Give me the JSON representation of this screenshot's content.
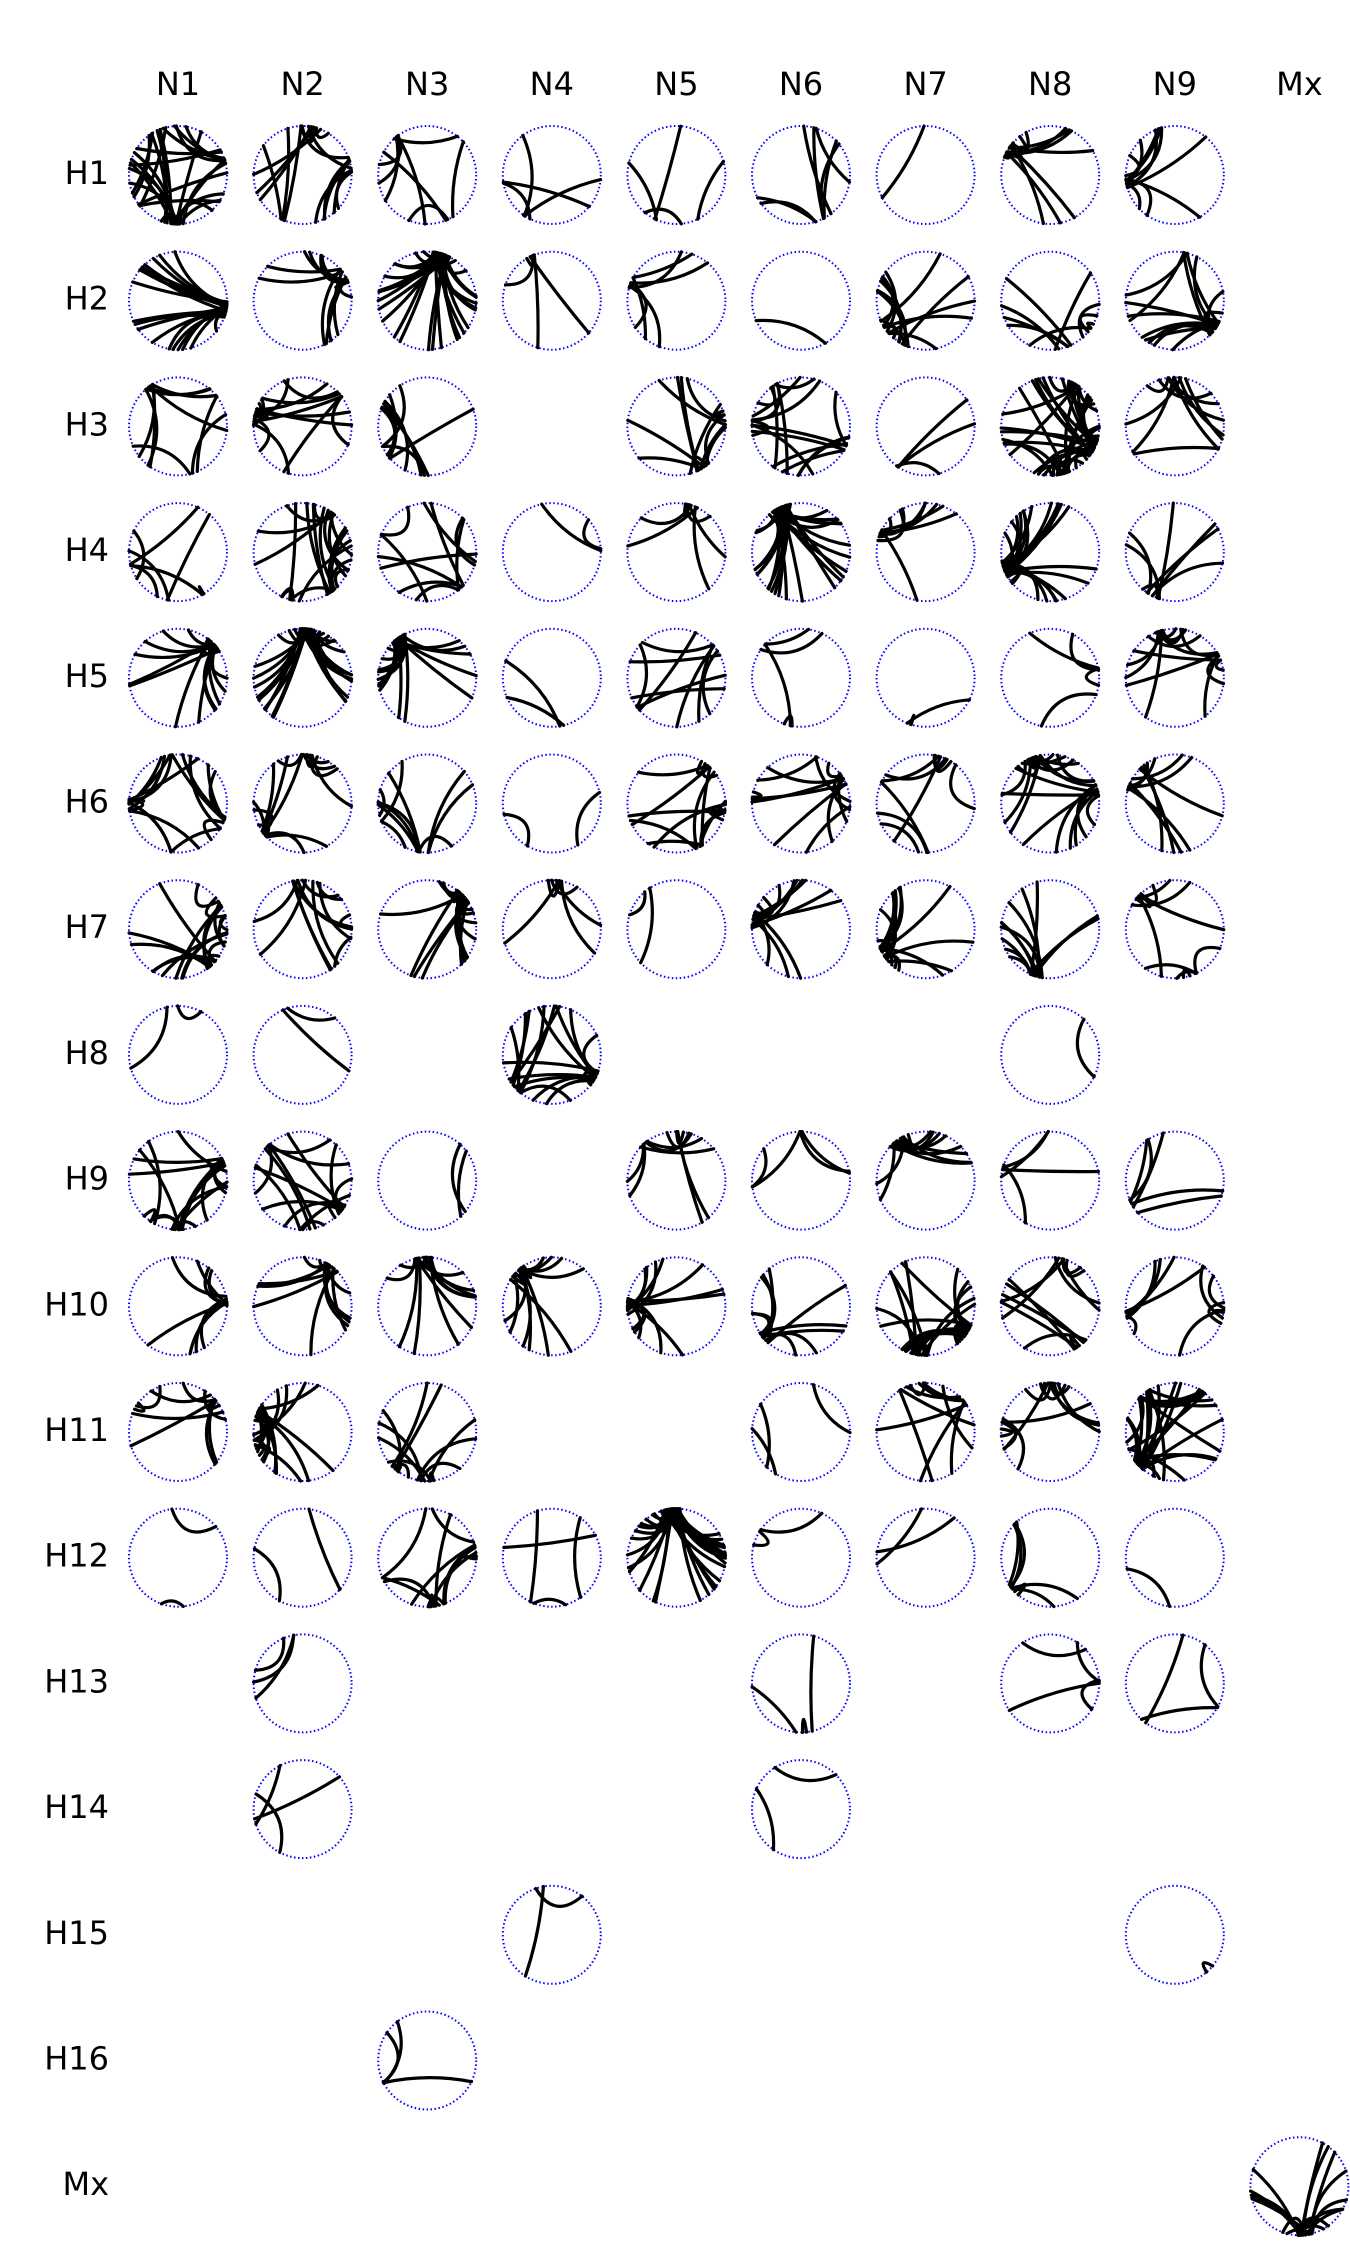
{
  "column_labels": [
    "N1",
    "N2",
    "N3",
    "N4",
    "N5",
    "N6",
    "N7",
    "N8",
    "N9",
    "Mx"
  ],
  "row_labels": [
    "H1",
    "H2",
    "H3",
    "H4",
    "H5",
    "H6",
    "H7",
    "H8",
    "H9",
    "H10",
    "H11",
    "H12",
    "H13",
    "H14",
    "H15",
    "H16",
    "Mx"
  ],
  "colors": {
    "circle": "#0000ff",
    "chord": "#000000",
    "background": "#ffffff"
  },
  "cells": [
    [
      26,
      16,
      8,
      5,
      4,
      7,
      1,
      12,
      10,
      0
    ],
    [
      18,
      12,
      28,
      4,
      6,
      1,
      13,
      9,
      14,
      0
    ],
    [
      10,
      14,
      9,
      0,
      12,
      16,
      3,
      40,
      10,
      0
    ],
    [
      7,
      20,
      10,
      2,
      6,
      30,
      10,
      22,
      7,
      0
    ],
    [
      14,
      26,
      16,
      2,
      9,
      4,
      2,
      4,
      14,
      0
    ],
    [
      16,
      14,
      10,
      2,
      14,
      12,
      9,
      20,
      9,
      0
    ],
    [
      18,
      12,
      18,
      5,
      2,
      12,
      16,
      12,
      10,
      0
    ],
    [
      2,
      2,
      0,
      18,
      0,
      0,
      0,
      1,
      0,
      0
    ],
    [
      18,
      16,
      2,
      0,
      9,
      4,
      12,
      4,
      5,
      0
    ],
    [
      8,
      12,
      12,
      12,
      12,
      10,
      24,
      12,
      10,
      0
    ],
    [
      10,
      16,
      12,
      0,
      0,
      3,
      10,
      12,
      26,
      0
    ],
    [
      2,
      2,
      14,
      4,
      30,
      2,
      2,
      6,
      1,
      0
    ],
    [
      0,
      3,
      0,
      0,
      0,
      3,
      0,
      4,
      3,
      0
    ],
    [
      0,
      3,
      0,
      0,
      0,
      2,
      0,
      0,
      0,
      0
    ],
    [
      0,
      0,
      0,
      2,
      0,
      0,
      0,
      0,
      1,
      0
    ],
    [
      0,
      0,
      3,
      0,
      0,
      0,
      0,
      0,
      0,
      0
    ],
    [
      0,
      0,
      0,
      0,
      0,
      0,
      0,
      0,
      0,
      16
    ]
  ]
}
